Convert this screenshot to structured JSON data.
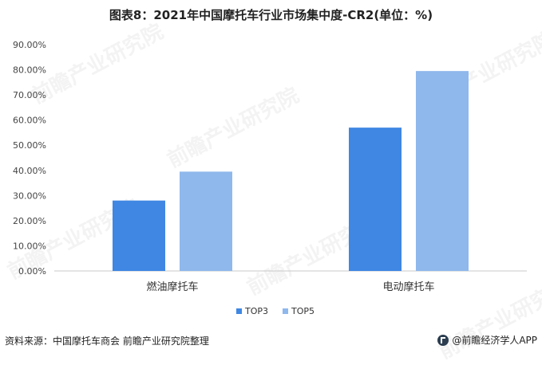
{
  "title": "图表8：2021年中国摩托车行业市场集中度-CR2(单位：%)",
  "footer": {
    "source": "资料来源：中国摩托车商会 前瞻产业研究院整理",
    "brand": "@前瞻经济学人APP"
  },
  "watermark_text": "前瞻产业研究院",
  "chart_data": {
    "type": "bar",
    "categories": [
      "燃油摩托车",
      "电动摩托车"
    ],
    "series": [
      {
        "name": "TOP3",
        "values": [
          28.0,
          57.0
        ],
        "color": "#3f87e3"
      },
      {
        "name": "TOP5",
        "values": [
          39.5,
          79.5
        ],
        "color": "#8fb8ec"
      }
    ],
    "ylim": [
      0,
      90
    ],
    "yticks": [
      "0.00%",
      "10.00%",
      "20.00%",
      "30.00%",
      "40.00%",
      "50.00%",
      "60.00%",
      "70.00%",
      "80.00%",
      "90.00%"
    ],
    "legend_position": "bottom-center",
    "grid": false
  }
}
